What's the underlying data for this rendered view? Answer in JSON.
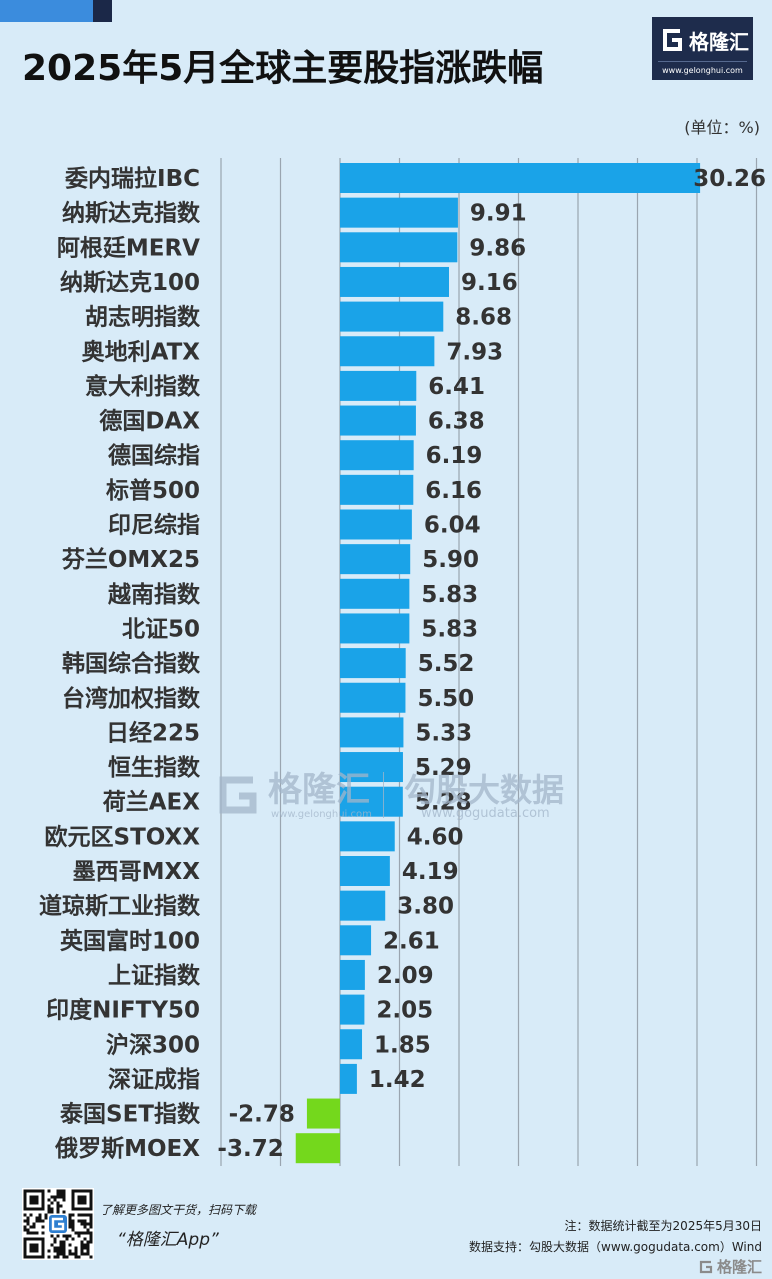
{
  "colors": {
    "page_background": "#d8ebf8",
    "brand_navy": "#1e2c4c",
    "bar_positive": "#1aa3e8",
    "bar_negative": "#74d81c",
    "gridline": "#9aa5b0"
  },
  "brand": {
    "icon": "gelonghui-logo-icon",
    "name": "格隆汇",
    "url": "www.gelonghui.com"
  },
  "chart_data": {
    "type": "bar",
    "orientation": "horizontal",
    "title": "2025年5月全球主要股指涨跌幅",
    "unit_label": "(单位：%)",
    "categories": [
      "委内瑞拉IBC",
      "纳斯达克指数",
      "阿根廷MERV",
      "纳斯达克100",
      "胡志明指数",
      "奥地利ATX",
      "意大利指数",
      "德国DAX",
      "德国综指",
      "标普500",
      "印尼综指",
      "芬兰OMX25",
      "越南指数",
      "北证50",
      "韩国综合指数",
      "台湾加权指数",
      "日经225",
      "恒生指数",
      "荷兰AEX",
      "欧元区STOXX",
      "墨西哥MXX",
      "道琼斯工业指数",
      "英国富时100",
      "上证指数",
      "印度NIFTY50",
      "沪深300",
      "深证成指",
      "泰国SET指数",
      "俄罗斯MOEX"
    ],
    "values": [
      30.26,
      9.91,
      9.86,
      9.16,
      8.68,
      7.93,
      6.41,
      6.38,
      6.19,
      6.16,
      6.04,
      5.9,
      5.83,
      5.83,
      5.52,
      5.5,
      5.33,
      5.29,
      5.28,
      4.6,
      4.19,
      3.8,
      2.61,
      2.09,
      2.05,
      1.85,
      1.42,
      -2.78,
      -3.72
    ],
    "xlim": [
      -10,
      35
    ],
    "grid": true
  },
  "watermark": {
    "brand": "格隆汇",
    "brand_url": "www.gelonghui.com",
    "partner": "勾股大数据",
    "partner_url": "www.gogudata.com"
  },
  "footer": {
    "qr_icon": "qr-code-icon",
    "qr_caption": "了解更多图文干货，扫码下载",
    "app_name": "“格隆汇App”",
    "note": "注：数据统计截至为2025年5月30日",
    "source": "数据支持：勾股大数据（www.gogudata.com）Wind",
    "logo_text": "格隆汇"
  }
}
